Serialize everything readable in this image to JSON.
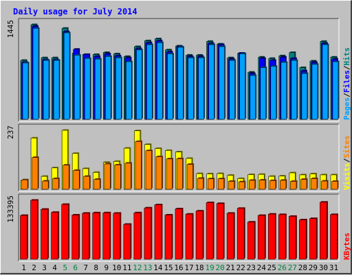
{
  "chart_data": {
    "type": "bar",
    "title": "Daily usage for July 2014",
    "categories": [
      "1",
      "2",
      "3",
      "4",
      "5",
      "6",
      "7",
      "8",
      "9",
      "10",
      "11",
      "12",
      "13",
      "14",
      "15",
      "16",
      "17",
      "18",
      "19",
      "20",
      "21",
      "22",
      "23",
      "24",
      "25",
      "26",
      "27",
      "28",
      "29",
      "30",
      "31"
    ],
    "weekend_days": [
      "5",
      "6",
      "12",
      "13",
      "19",
      "20",
      "26",
      "27"
    ],
    "panels": [
      {
        "name": "pages_files_hits",
        "ymax_label": "1445",
        "ylim": [
          0,
          1445
        ],
        "legend": [
          "Pages",
          "Files",
          "Hits"
        ],
        "legend_colors": [
          "#00a0ff",
          "#0000ff",
          "#008080"
        ],
        "series": [
          {
            "name": "Hits",
            "color": "#008080",
            "values": [
              900,
              1445,
              940,
              940,
              1390,
              1010,
              990,
              990,
              1020,
              1000,
              960,
              1110,
              1200,
              1230,
              1060,
              1120,
              980,
              980,
              1190,
              1150,
              940,
              1010,
              720,
              950,
              930,
              970,
              1020,
              790,
              890,
              1190,
              950
            ]
          },
          {
            "name": "Files",
            "color": "#0000ff",
            "values": [
              870,
              1420,
              910,
              910,
              1340,
              1070,
              990,
              960,
              1000,
              970,
              940,
              1080,
              1170,
              1200,
              1030,
              1110,
              960,
              960,
              1160,
              1140,
              920,
              1010,
              700,
              930,
              900,
              950,
              930,
              740,
              870,
              1160,
              920
            ]
          },
          {
            "name": "Pages",
            "color": "#00a0ff",
            "values": [
              860,
              1390,
              900,
              900,
              1320,
              980,
              930,
              920,
              960,
              940,
              880,
              1060,
              1140,
              1170,
              1000,
              1100,
              940,
              940,
              1140,
              1110,
              900,
              1000,
              670,
              790,
              810,
              870,
              900,
              700,
              840,
              1140,
              880
            ]
          }
        ]
      },
      {
        "name": "visits_sites",
        "ymax_label": "237",
        "ylim": [
          0,
          237
        ],
        "legend": [
          "Visits",
          "Sites"
        ],
        "legend_colors": [
          "#ffff00",
          "#ff8000"
        ],
        "series": [
          {
            "name": "Visits",
            "color": "#ffff00",
            "values": [
              34,
              206,
              52,
              86,
              237,
              144,
              83,
              68,
              108,
              112,
              165,
              235,
              180,
              164,
              156,
              150,
              124,
              63,
              62,
              63,
              56,
              43,
              59,
              60,
              52,
              53,
              66,
              58,
              62,
              58,
              58
            ]
          },
          {
            "name": "Sites",
            "color": "#ff8000",
            "values": [
              38,
              128,
              33,
              43,
              97,
              76,
              52,
              40,
              102,
              98,
              105,
              192,
              155,
              131,
              122,
              123,
              100,
              44,
              42,
              42,
              32,
              30,
              36,
              37,
              35,
              36,
              32,
              40,
              43,
              33,
              32
            ]
          }
        ]
      },
      {
        "name": "kbytes",
        "ymax_label": "133395",
        "ylim": [
          0,
          133395
        ],
        "legend": [
          "KBytes"
        ],
        "legend_colors": [
          "#ff0000"
        ],
        "series": [
          {
            "name": "KBytes",
            "color": "#ff0000",
            "values": [
              99000,
              133395,
              113000,
              106000,
              124000,
              100000,
              104000,
              105000,
              105000,
              104000,
              79000,
              105000,
              116000,
              123000,
              100000,
              114000,
              102000,
              109000,
              128000,
              126000,
              104000,
              115000,
              84000,
              99000,
              102000,
              101000,
              97000,
              89000,
              92000,
              129000,
              101000
            ]
          }
        ]
      }
    ],
    "colors": {
      "background": "#c0c0c0",
      "title_text": "#0000ff",
      "weekend_text": "#008040",
      "weekday_text": "#000000"
    }
  }
}
